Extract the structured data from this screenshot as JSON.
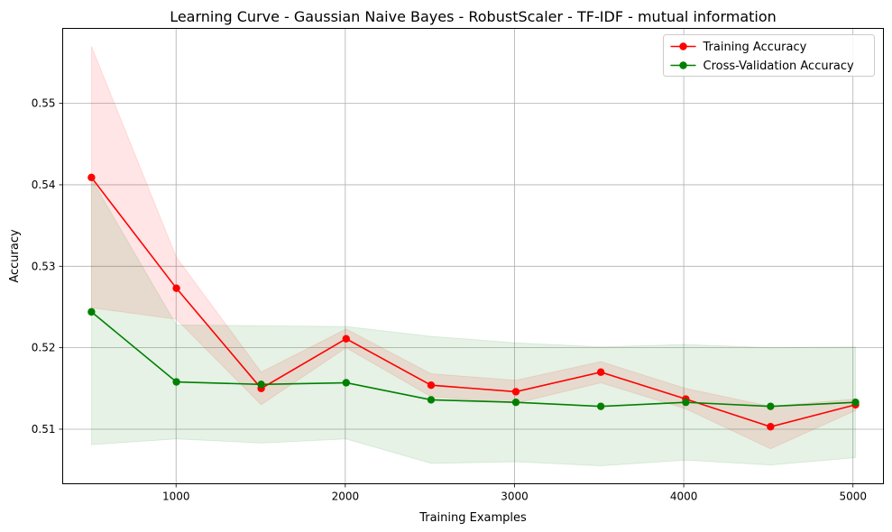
{
  "chart_data": {
    "type": "line",
    "title": "Learning Curve - Gaussian Naive Bayes - RobustScaler - TF-IDF - mutual information",
    "xlabel": "Training Examples",
    "ylabel": "Accuracy",
    "xlim": [
      330,
      5180
    ],
    "ylim": [
      0.5033,
      0.5592
    ],
    "xticks": [
      1000,
      2000,
      3000,
      4000,
      5000
    ],
    "yticks": [
      0.51,
      0.52,
      0.53,
      0.54,
      0.55
    ],
    "grid": true,
    "legend_position": "top-right",
    "x": [
      500,
      1002,
      1503,
      2005,
      2507,
      3008,
      3510,
      4012,
      4513,
      5015
    ],
    "series": [
      {
        "name": "Training Accuracy",
        "color": "#ff0000",
        "values": [
          0.5409,
          0.5273,
          0.515,
          0.5211,
          0.5154,
          0.5146,
          0.517,
          0.5137,
          0.5103,
          0.513
        ],
        "band_lower": [
          0.5249,
          0.5235,
          0.513,
          0.52,
          0.514,
          0.5132,
          0.5157,
          0.5125,
          0.5076,
          0.5123
        ],
        "band_upper": [
          0.557,
          0.5311,
          0.517,
          0.5223,
          0.5168,
          0.516,
          0.5183,
          0.515,
          0.5128,
          0.5137
        ],
        "band_color": "#ff0000"
      },
      {
        "name": "Cross-Validation Accuracy",
        "color": "#008000",
        "values": [
          0.5244,
          0.5158,
          0.5155,
          0.5157,
          0.5136,
          0.5133,
          0.5128,
          0.5133,
          0.5128,
          0.5133
        ],
        "band_lower": [
          0.5081,
          0.5088,
          0.5083,
          0.5088,
          0.5058,
          0.506,
          0.5055,
          0.5062,
          0.5056,
          0.5065
        ],
        "band_upper": [
          0.5407,
          0.5228,
          0.5227,
          0.5226,
          0.5214,
          0.5206,
          0.5201,
          0.5204,
          0.52,
          0.5201
        ],
        "band_color": "#008000"
      }
    ]
  }
}
